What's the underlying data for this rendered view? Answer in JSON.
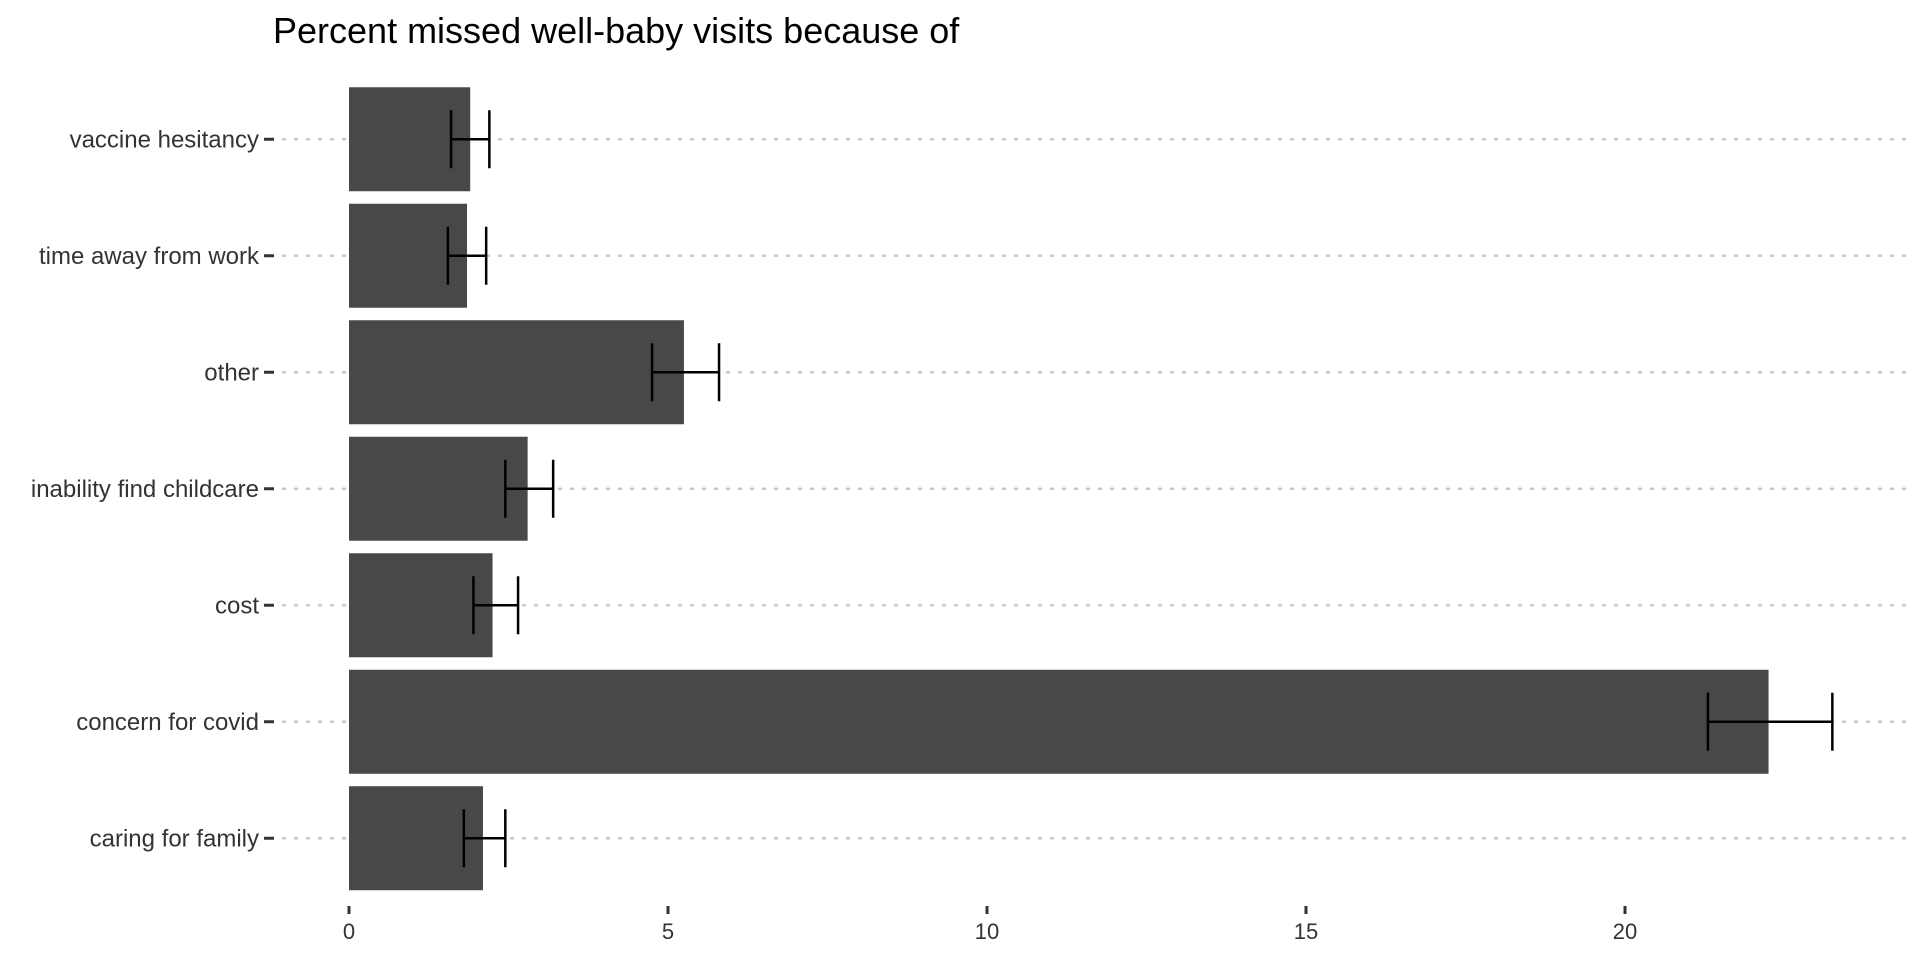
{
  "chart_data": {
    "type": "bar",
    "orientation": "horizontal",
    "title": "Percent missed well-baby visits because of",
    "xlabel": "",
    "ylabel": "",
    "xlim": [
      0,
      24
    ],
    "x_ticks": [
      0,
      5,
      10,
      15,
      20
    ],
    "grid": "horizontal-dotted",
    "legend": "none",
    "bar_color": "#484848",
    "categories": [
      "vaccine hesitancy",
      "time away from work",
      "other",
      "inability find childcare",
      "cost",
      "concern for covid",
      "caring for family"
    ],
    "values": [
      1.9,
      1.85,
      5.25,
      2.8,
      2.25,
      22.25,
      2.1
    ],
    "error_low": [
      1.6,
      1.55,
      4.75,
      2.45,
      1.95,
      21.3,
      1.8
    ],
    "error_high": [
      2.2,
      2.15,
      5.8,
      3.2,
      2.65,
      23.25,
      2.45
    ]
  }
}
